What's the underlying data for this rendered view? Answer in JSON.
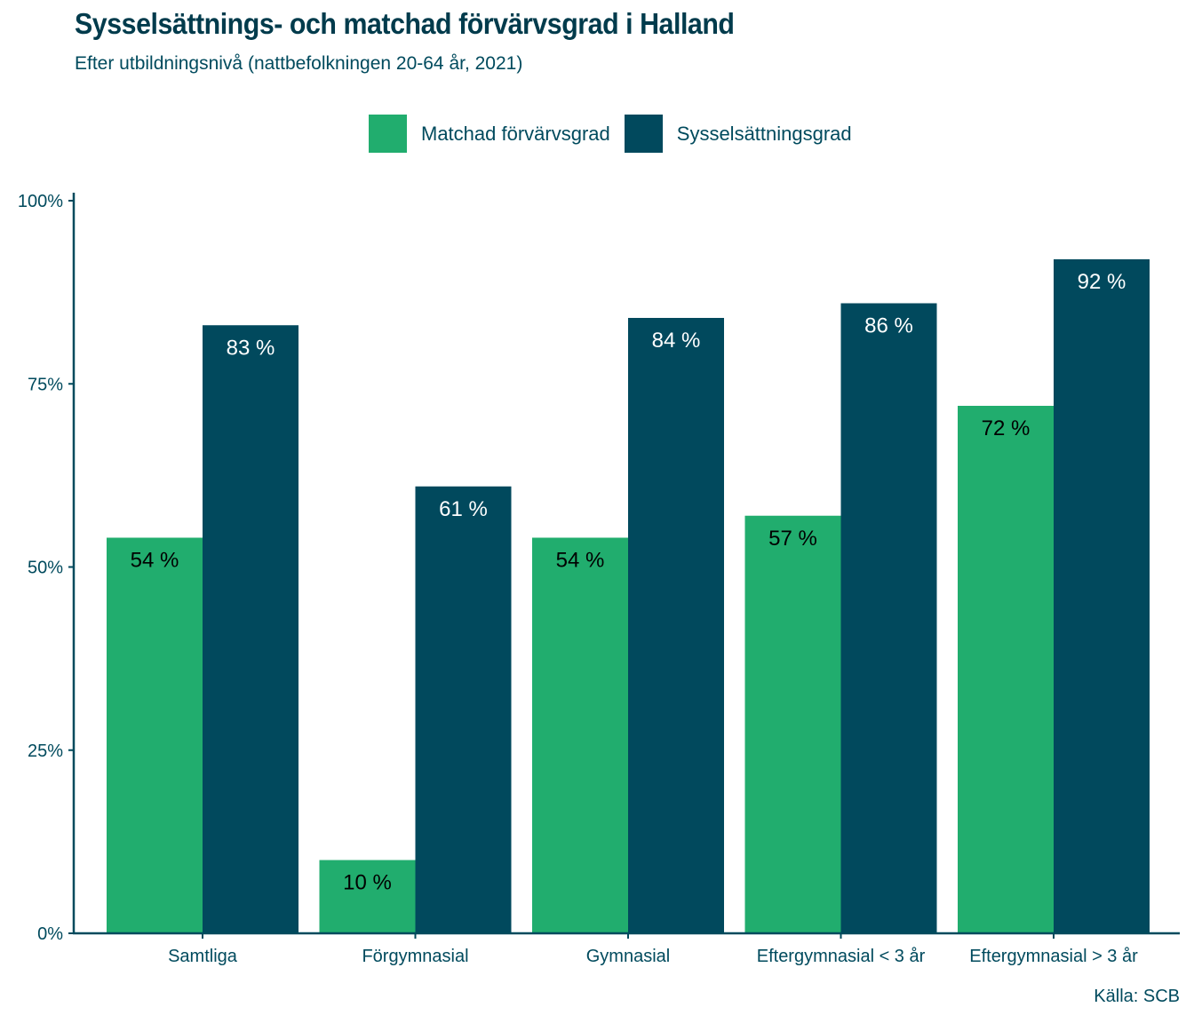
{
  "header": {
    "title": "Sysselsättnings- och matchad förvärvsgrad i Halland",
    "subtitle": "Efter utbildningsnivå (nattbefolkningen 20-64 år, 2021)"
  },
  "footer": {
    "source": "Källa: SCB"
  },
  "colors": {
    "matchad": "#21ad6e",
    "syssel": "#01495d",
    "text": "#004a5d",
    "axis": "#004a5d"
  },
  "chart_data": {
    "type": "bar",
    "title": "Sysselsättnings- och matchad förvärvsgrad i Halland",
    "subtitle": "Efter utbildningsnivå (nattbefolkningen 20-64 år, 2021)",
    "xlabel": "",
    "ylabel": "",
    "ylim": [
      0,
      100
    ],
    "yticks": [
      0,
      25,
      50,
      75,
      100
    ],
    "ytick_labels": [
      "0%",
      "25%",
      "50%",
      "75%",
      "100%"
    ],
    "grid": false,
    "legend_position": "top-center",
    "categories": [
      "Samtliga",
      "Förgymnasial",
      "Gymnasial",
      "Eftergymnasial < 3 år",
      "Eftergymnasial > 3 år"
    ],
    "series": [
      {
        "name": "Matchad förvärvsgrad",
        "color": "#21ad6e",
        "label_color": "#000000",
        "values": [
          54,
          10,
          54,
          57,
          72
        ],
        "labels": [
          "54 %",
          "10 %",
          "54 %",
          "57 %",
          "72 %"
        ]
      },
      {
        "name": "Sysselsättningsgrad",
        "color": "#01495d",
        "label_color": "#ffffff",
        "values": [
          83,
          61,
          84,
          86,
          92
        ],
        "labels": [
          "83 %",
          "61 %",
          "84 %",
          "86 %",
          "92 %"
        ]
      }
    ],
    "source": "Källa: SCB"
  }
}
